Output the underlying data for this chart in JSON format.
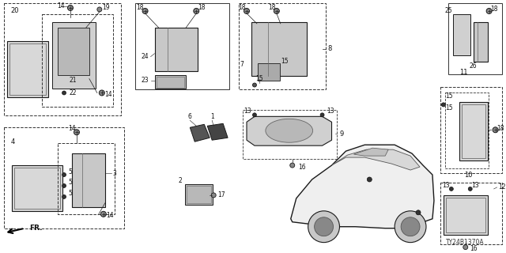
{
  "bg_color": "#ffffff",
  "diagram_code": "TY24B1370A",
  "fig_width": 6.4,
  "fig_height": 3.2,
  "dpi": 100,
  "line_color": "#1a1a1a",
  "gray_fill": "#e0e0e0",
  "dark_fill": "#555555",
  "mid_fill": "#aaaaaa"
}
